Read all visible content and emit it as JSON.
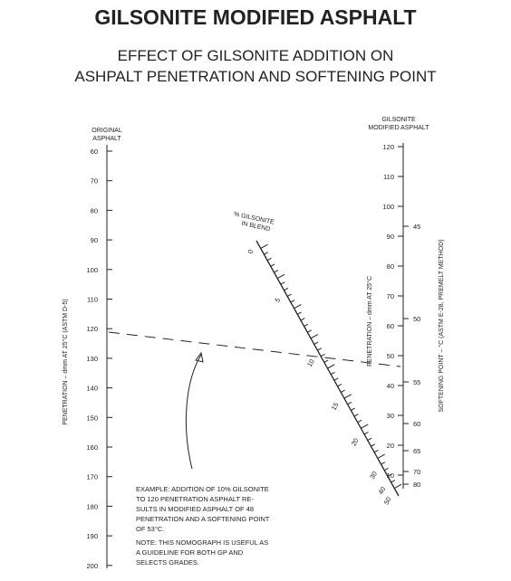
{
  "title": "GILSONITE MODIFIED ASPHALT",
  "subtitle": [
    "EFFECT OF GILSONITE ADDITION ON",
    "ASHPALT PENETRATION AND SOFTENING POINT"
  ],
  "left_axis": {
    "header": [
      "ORIGINAL",
      "ASPHALT"
    ],
    "label": "PENETRATION – dmm AT 25°C (ASTM D-5)",
    "ticks": [
      "60",
      "70",
      "80",
      "90",
      "100",
      "110",
      "120",
      "130",
      "140",
      "150",
      "160",
      "170",
      "180",
      "190",
      "200"
    ]
  },
  "middle_scale": {
    "header": [
      "% GILSONITE",
      "IN BLEND"
    ],
    "ticks": [
      "0",
      "5",
      "10",
      "15",
      "20",
      "30",
      "40",
      "50"
    ]
  },
  "right_axis": {
    "header": [
      "GILSONITE",
      "MODIFIED ASPHALT"
    ],
    "penetration_label": "PENETRATION – dmm AT 25°C",
    "penetration_ticks": [
      "120",
      "110",
      "100",
      "90",
      "80",
      "70",
      "60",
      "50",
      "40",
      "30",
      "20",
      "10"
    ],
    "softening_label": "SOFTENING POINT – °C (ASTM E-28, PREMELT METHOD)",
    "softening_ticks": [
      "45",
      "50",
      "55",
      "60",
      "65",
      "70",
      "80"
    ]
  },
  "example": [
    "EXAMPLE: ADDITION OF 10% GILSONITE",
    "TO 120 PENETRATION ASPHALT RE-",
    "SULTS IN MODIFIED ASPHALT OF 48",
    "PENETRATION AND A SOFTENING POINT",
    "OF 53°C."
  ],
  "note": [
    "NOTE: THIS NOMOGRAPH IS USEFUL AS",
    "A GUIDELINE FOR BOTH GP AND",
    "SELECTS GRADES."
  ]
}
